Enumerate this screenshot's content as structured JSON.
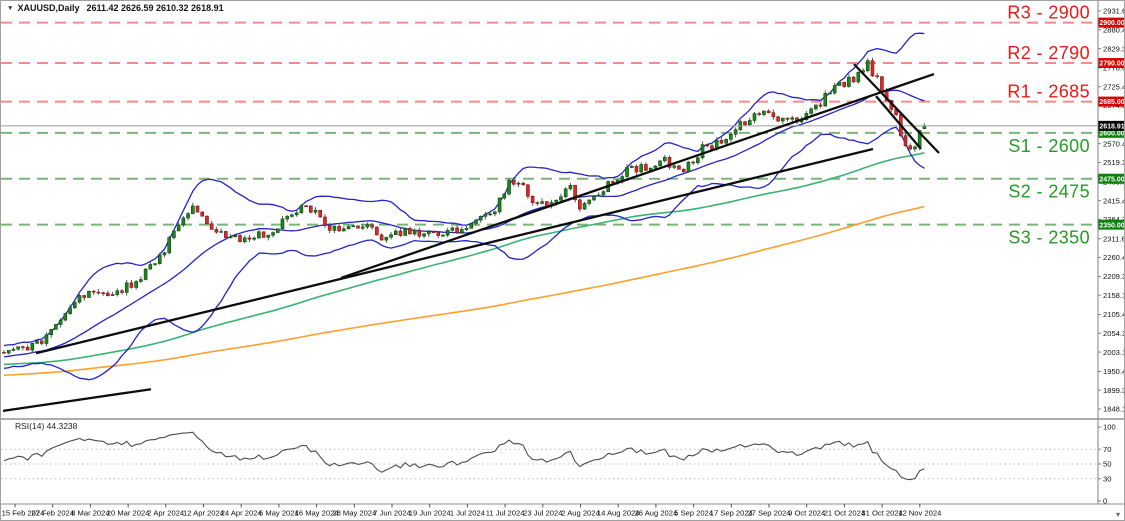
{
  "header": {
    "collapse_icon": "▼",
    "symbol_period": "XAUUSD,Daily",
    "ohlc_text": "2611.42 2626.59 2610.32 2618.91"
  },
  "rsi": {
    "label": "RSI(14) 44.3238"
  },
  "corner_icon": "▾",
  "colors": {
    "bull_body": "#1d861d",
    "bull_stroke": "#0b470b",
    "bear_body": "#d92a2a",
    "bear_stroke": "#7c1212",
    "wick": "#5a5a5a",
    "bollinger": "#2424c8",
    "ma100": "#3cb371",
    "ma200": "#ff9f2e",
    "trendline": "#0d0d0d",
    "resistance_line": "#f48a8a",
    "resistance_text": "#ef1616",
    "resistance_badge": "#de0000",
    "support_line": "#79b579",
    "support_text": "#259a25",
    "support_badge": "#0b800b",
    "current_line": "#9b9b9b",
    "current_badge": "#000000",
    "axis_line": "#808080",
    "tick_text": "#111111",
    "rsi_line": "#4c4c4c",
    "rsi_grid": "#bdbdbd",
    "date_text": "#111111",
    "separator": "#909090"
  },
  "levels": [
    {
      "id": "r3",
      "label": "R3 - 2900",
      "price": 2900,
      "badge": "2900.00",
      "type": "resistance"
    },
    {
      "id": "r2",
      "label": "R2 - 2790",
      "price": 2790,
      "badge": "2790.00",
      "type": "resistance"
    },
    {
      "id": "r1",
      "label": "R1 - 2685",
      "price": 2685,
      "badge": "2685.00",
      "type": "resistance"
    },
    {
      "id": "s1",
      "label": "S1 - 2600",
      "price": 2600,
      "badge": "2600.00",
      "type": "support"
    },
    {
      "id": "s2",
      "label": "S2 - 2475",
      "price": 2475,
      "badge": "2475.00",
      "type": "support"
    },
    {
      "id": "s3",
      "label": "S3 - 2350",
      "price": 2350,
      "badge": "2350.00",
      "type": "support"
    }
  ],
  "current_price": {
    "value": 2618.91,
    "badge": "2618.91"
  },
  "price_axis": {
    "ticks": [
      "2931.60",
      "2880.45",
      "2829.30",
      "2776.60",
      "2725.45",
      "2674.30",
      "2621.60",
      "2570.45",
      "2519.30",
      "2466.60",
      "2415.45",
      "2364.30",
      "2311.60",
      "2260.45",
      "2209.30",
      "2158.15",
      "2105.45",
      "2054.30",
      "2003.15",
      "1950.45",
      "1899.30",
      "1848.15"
    ]
  },
  "rsi_axis": {
    "ticks": [
      100,
      70,
      50,
      30,
      0
    ]
  },
  "dates": [
    "15 Feb 2024",
    "27 Feb 2024",
    "8 Mar 2024",
    "20 Mar 2024",
    "2 Apr 2024",
    "12 Apr 2024",
    "24 Apr 2024",
    "6 May 2024",
    "16 May 2024",
    "28 May 2024",
    "7 Jun 2024",
    "19 Jun 2024",
    "1 Jul 2024",
    "11 Jul 2024",
    "23 Jul 2024",
    "2 Aug 2024",
    "14 Aug 2024",
    "26 Aug 2024",
    "5 Sep 2024",
    "17 Sep 2024",
    "27 Sep 2024",
    "9 Oct 2024",
    "21 Oct 2024",
    "31 Oct 2024",
    "12 Nov 2024"
  ],
  "chart_data": {
    "type": "candlestick",
    "symbol": "XAUUSD",
    "timeframe": "Daily",
    "title": "XAUUSD,Daily",
    "last_bar": {
      "open": 2611.42,
      "high": 2626.59,
      "low": 2610.32,
      "close": 2618.91
    },
    "y_axis": {
      "min": 1848.15,
      "max": 2931.6
    },
    "x_range": [
      "15 Feb 2024",
      "15 Nov 2024"
    ],
    "n_bars": 196,
    "close_path_anchors": [
      [
        0,
        2002
      ],
      [
        4,
        2012
      ],
      [
        8,
        2028
      ],
      [
        12,
        2090
      ],
      [
        16,
        2152
      ],
      [
        20,
        2168
      ],
      [
        24,
        2160
      ],
      [
        28,
        2200
      ],
      [
        32,
        2245
      ],
      [
        36,
        2325
      ],
      [
        40,
        2392
      ],
      [
        42,
        2365
      ],
      [
        44,
        2342
      ],
      [
        48,
        2318
      ],
      [
        52,
        2312
      ],
      [
        56,
        2328
      ],
      [
        60,
        2372
      ],
      [
        64,
        2412
      ],
      [
        66,
        2378
      ],
      [
        68,
        2342
      ],
      [
        72,
        2336
      ],
      [
        76,
        2352
      ],
      [
        80,
        2318
      ],
      [
        84,
        2332
      ],
      [
        88,
        2322
      ],
      [
        92,
        2326
      ],
      [
        96,
        2332
      ],
      [
        100,
        2368
      ],
      [
        104,
        2392
      ],
      [
        107,
        2462
      ],
      [
        110,
        2448
      ],
      [
        112,
        2402
      ],
      [
        116,
        2412
      ],
      [
        120,
        2446
      ],
      [
        122,
        2392
      ],
      [
        126,
        2432
      ],
      [
        128,
        2458
      ],
      [
        132,
        2498
      ],
      [
        136,
        2506
      ],
      [
        140,
        2522
      ],
      [
        144,
        2496
      ],
      [
        148,
        2556
      ],
      [
        152,
        2572
      ],
      [
        156,
        2622
      ],
      [
        160,
        2656
      ],
      [
        164,
        2642
      ],
      [
        168,
        2626
      ],
      [
        172,
        2672
      ],
      [
        176,
        2722
      ],
      [
        180,
        2748
      ],
      [
        183,
        2786
      ],
      [
        185,
        2742
      ],
      [
        187,
        2692
      ],
      [
        189,
        2642
      ],
      [
        191,
        2560
      ],
      [
        193,
        2562
      ],
      [
        195,
        2619
      ]
    ],
    "support_resistance": [
      2900,
      2790,
      2685,
      2600,
      2475,
      2350
    ],
    "indicators": [
      {
        "name": "Bollinger Bands",
        "period": 20,
        "deviation": 2
      },
      {
        "name": "SMA",
        "period": 100
      },
      {
        "name": "SMA",
        "period": 200
      },
      {
        "name": "RSI",
        "period": 14,
        "value": 44.3238,
        "panel_levels": [
          30,
          50,
          70
        ]
      }
    ],
    "trendlines": [
      {
        "name": "primary-uptrend",
        "points_x_price": [
          [
            35,
            2000
          ],
          [
            872,
            2556
          ]
        ]
      },
      {
        "name": "secondary-uptrend",
        "points_x_price": [
          [
            340,
            2205
          ],
          [
            933,
            2760
          ]
        ]
      },
      {
        "name": "wedge-upper",
        "points_x_price": [
          [
            853,
            2787
          ],
          [
            938,
            2545
          ]
        ]
      },
      {
        "name": "wedge-lower",
        "points_x_price": [
          [
            875,
            2700
          ],
          [
            920,
            2556
          ]
        ]
      },
      {
        "name": "minor-left-segment",
        "points_x_price": [
          [
            2,
            1843
          ],
          [
            150,
            1902
          ]
        ]
      }
    ]
  }
}
